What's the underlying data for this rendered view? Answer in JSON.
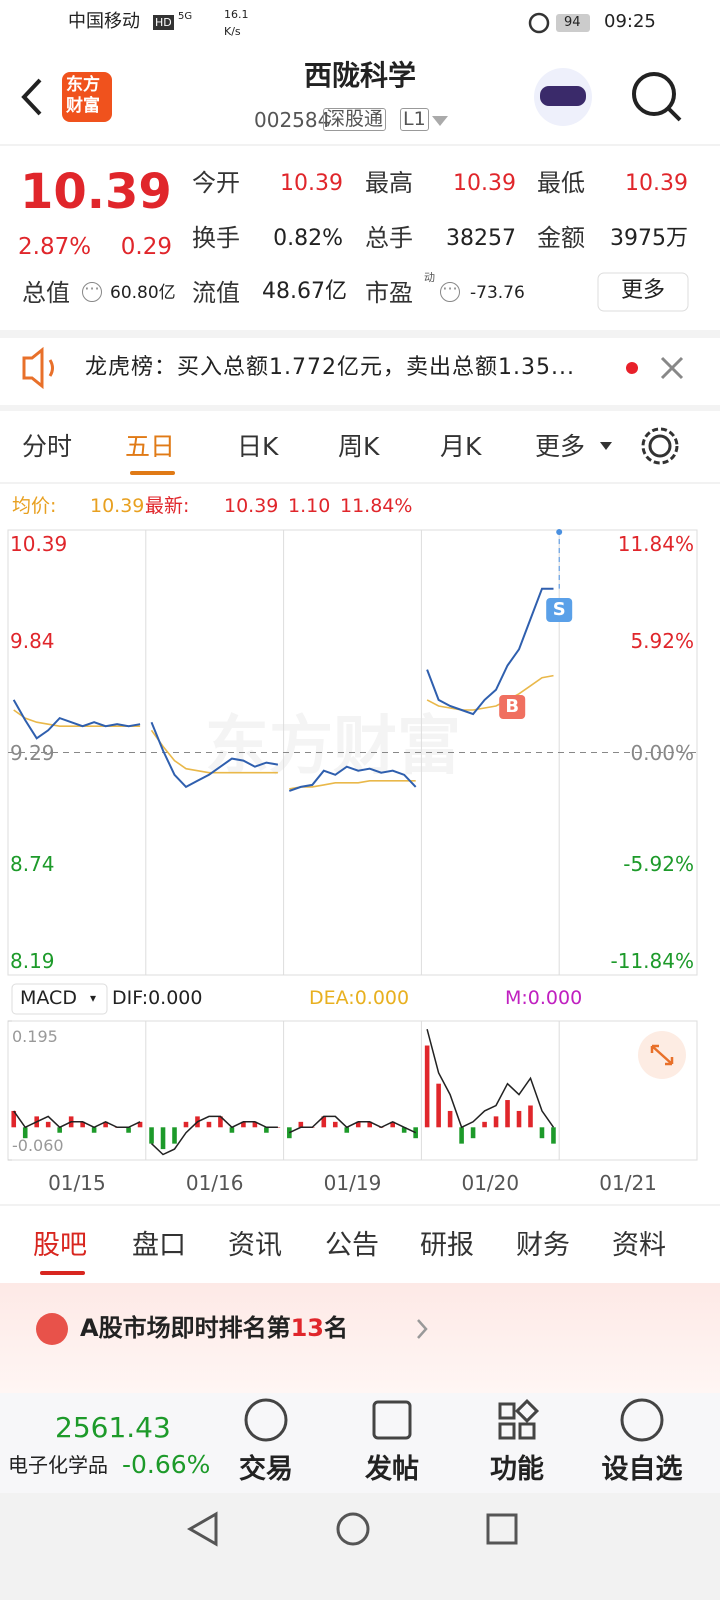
{
  "status": {
    "carrier": "中国移动",
    "hd": "HD",
    "net": "5G",
    "speed": "16.1",
    "speed_unit": "K/s",
    "battery": "94",
    "time": "09:25"
  },
  "header": {
    "logo": [
      "东方",
      "财富"
    ],
    "title": "西陇科学",
    "code": "002584",
    "tag": "深股通",
    "level": "L1"
  },
  "quote": {
    "price": "10.39",
    "change_pct": "2.87%",
    "change": "0.29",
    "total_value": {
      "label": "总值",
      "value": "60.80亿"
    },
    "grid": [
      [
        {
          "label": "今开",
          "value": "10.39"
        },
        {
          "label": "最高",
          "value": "10.39"
        },
        {
          "label": "最低",
          "value": "10.39"
        }
      ],
      [
        {
          "label": "换手",
          "value": "0.82%"
        },
        {
          "label": "总手",
          "value": "38257"
        },
        {
          "label": "金额",
          "value": "3975万"
        }
      ]
    ],
    "float_value": {
      "label": "流值",
      "value": "48.67亿"
    },
    "pe": {
      "label": "市盈",
      "sup": "动",
      "value": "-73.76"
    },
    "more": "更多"
  },
  "notice": {
    "text": "龙虎榜：买入总额1.772亿元，卖出总额1.35..."
  },
  "tabs": {
    "items": [
      "分时",
      "五日",
      "日K",
      "周K",
      "月K"
    ],
    "more": "更多",
    "active": 1
  },
  "info": {
    "avg_label": "均价:",
    "avg": "10.39",
    "last_label": "最新:",
    "last": "10.39",
    "change": "1.10",
    "pct": "11.84%"
  },
  "chart": {
    "watermark": "东方财富",
    "ylim": [
      8.19,
      10.39
    ],
    "yticks": [
      10.39,
      9.84,
      9.29,
      8.74,
      8.19
    ],
    "y2lim": [
      -11.84,
      11.84
    ],
    "y2ticks": [
      {
        "value": 11.84,
        "label": "11.84%"
      },
      {
        "value": 5.92,
        "label": "5.92%"
      },
      {
        "value": 0,
        "label": "0.00%"
      },
      {
        "value": -5.92,
        "label": "-5.92%"
      },
      {
        "value": -11.84,
        "label": "-11.84%"
      }
    ],
    "price_color": "#2f5fae",
    "avg_color": "#e9b84a",
    "buy": "B",
    "sell": "S",
    "days": [
      {
        "date": "01/15",
        "price": [
          9.55,
          9.45,
          9.36,
          9.4,
          9.46,
          9.44,
          9.42,
          9.44,
          9.42,
          9.43,
          9.42,
          9.43
        ],
        "avg": [
          9.5,
          9.46,
          9.44,
          9.43,
          9.42,
          9.42,
          9.42,
          9.42,
          9.42,
          9.42,
          9.42,
          9.42
        ],
        "macd": [
          0.03,
          -0.02,
          0.02,
          0.01,
          -0.01,
          0.02,
          0.01,
          -0.01,
          0.01,
          0.0,
          -0.01,
          0.01
        ],
        "dif": [
          0.03,
          0.0,
          0.01,
          0.02,
          0.0,
          0.01,
          0.01,
          0.0,
          0.01,
          0.0,
          0.0,
          0.01
        ]
      },
      {
        "date": "01/16",
        "price": [
          9.44,
          9.3,
          9.18,
          9.12,
          9.15,
          9.18,
          9.22,
          9.26,
          9.25,
          9.22,
          9.24,
          9.23
        ],
        "avg": [
          9.4,
          9.32,
          9.25,
          9.21,
          9.2,
          9.19,
          9.19,
          9.19,
          9.19,
          9.19,
          9.19,
          9.19
        ],
        "macd": [
          -0.03,
          -0.04,
          -0.03,
          0.01,
          0.02,
          0.01,
          0.02,
          -0.01,
          0.01,
          0.01,
          -0.01,
          0.0
        ],
        "dif": [
          -0.03,
          -0.05,
          -0.04,
          -0.01,
          0.01,
          0.02,
          0.02,
          0.0,
          0.01,
          0.01,
          0.0,
          0.0
        ]
      },
      {
        "date": "01/19",
        "price": [
          9.1,
          9.12,
          9.13,
          9.2,
          9.18,
          9.22,
          9.2,
          9.21,
          9.19,
          9.2,
          9.18,
          9.12
        ],
        "avg": [
          9.11,
          9.12,
          9.12,
          9.13,
          9.14,
          9.14,
          9.14,
          9.15,
          9.15,
          9.15,
          9.15,
          9.15
        ],
        "macd": [
          -0.02,
          0.01,
          0.0,
          0.02,
          0.01,
          -0.01,
          0.01,
          0.01,
          0.0,
          0.01,
          -0.01,
          -0.02
        ],
        "dif": [
          -0.01,
          0.0,
          0.0,
          0.02,
          0.02,
          0.0,
          0.01,
          0.01,
          0.0,
          0.01,
          0.0,
          -0.01
        ]
      },
      {
        "date": "01/20",
        "price": [
          9.7,
          9.55,
          9.52,
          9.5,
          9.48,
          9.55,
          9.6,
          9.72,
          9.8,
          9.95,
          10.1,
          10.1
        ],
        "avg": [
          9.55,
          9.52,
          9.51,
          9.5,
          9.5,
          9.51,
          9.52,
          9.55,
          9.58,
          9.62,
          9.66,
          9.67
        ],
        "macd": [
          0.15,
          0.08,
          0.03,
          -0.03,
          -0.02,
          0.01,
          0.02,
          0.05,
          0.03,
          0.04,
          -0.02,
          -0.03
        ],
        "dif": [
          0.18,
          0.1,
          0.06,
          0.0,
          0.01,
          0.03,
          0.04,
          0.08,
          0.06,
          0.09,
          0.03,
          0.0
        ]
      },
      {
        "date": "01/21"
      }
    ]
  },
  "macd": {
    "name": "MACD",
    "dif": "DIF:0.000",
    "dea": "DEA:0.000",
    "m": "M:0.000",
    "ylim": [
      -0.06,
      0.195
    ],
    "yticks": [
      0.195,
      {
        "value": -0.06,
        "label": "-0.060"
      }
    ]
  },
  "subtabs": {
    "items": [
      "股吧",
      "盘口",
      "资讯",
      "公告",
      "研报",
      "财务",
      "资料"
    ],
    "active": 0
  },
  "banner": {
    "prefix": "A股市场即时排名第",
    "rank": "13",
    "suffix": "名"
  },
  "bottom": {
    "index_value": "2561.43",
    "index_name": "电子化学品",
    "index_pct": "-0.66%",
    "buttons": [
      "交易",
      "发帖",
      "功能",
      "设自选"
    ]
  }
}
